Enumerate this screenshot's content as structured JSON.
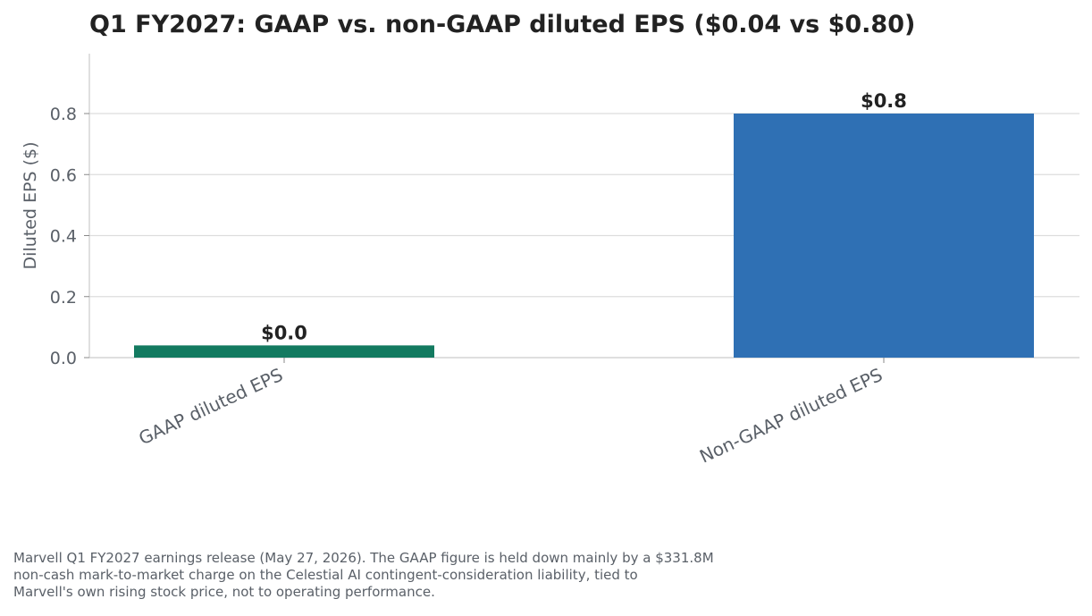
{
  "chart_data": {
    "type": "bar",
    "title": "Q1 FY2027: GAAP vs. non-GAAP diluted EPS ($0.04 vs $0.80)",
    "xlabel": "",
    "ylabel": "Diluted EPS ($)",
    "categories": [
      "GAAP diluted EPS",
      "Non-GAAP diluted EPS"
    ],
    "values": [
      0.04,
      0.8
    ],
    "data_labels": [
      "$0.0",
      "$0.8"
    ],
    "colors": [
      "#137a60",
      "#2f70b4"
    ],
    "ylim": [
      0,
      1.0
    ],
    "yticks": [
      0.0,
      0.2,
      0.4,
      0.6,
      0.8
    ],
    "ytick_labels": [
      "0.0",
      "0.2",
      "0.4",
      "0.6",
      "0.8"
    ],
    "grid": "horizontal",
    "legend": "none"
  },
  "caption": {
    "lines": [
      "Marvell Q1 FY2027 earnings release (May 27, 2026). The GAAP figure is held down mainly by a $331.8M",
      "non-cash mark-to-market charge on the Celestial AI contingent-consideration liability, tied to",
      "Marvell's own rising stock price, not to operating performance."
    ]
  }
}
